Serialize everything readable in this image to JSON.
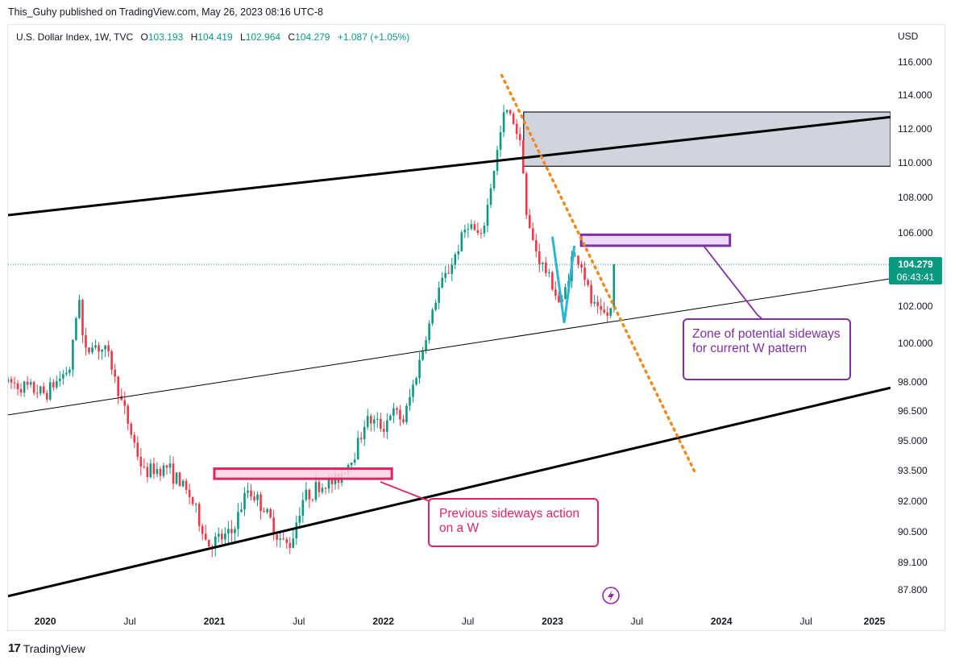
{
  "header": {
    "published_line": "This_Guhy published on TradingView.com, May 26, 2023 08:16 UTC-8"
  },
  "legend": {
    "symbol": "U.S. Dollar Index, 1W, TVC",
    "open_label": "O",
    "open": "103.193",
    "high_label": "H",
    "high": "104.419",
    "low_label": "L",
    "low": "102.964",
    "close_label": "C",
    "close": "104.279",
    "change": "+1.087 (+1.05%)"
  },
  "currency": "USD",
  "price_tag": {
    "price": "104.279",
    "countdown": "06:43:41"
  },
  "callouts": {
    "zone": "Zone of potential sideways for current W pattern",
    "previous": "Previous sideways action on a W"
  },
  "footer": {
    "brand": "TradingView",
    "logo": "tv-logo-icon"
  },
  "colors": {
    "up": "#089981",
    "down": "#f23645",
    "accent_purple": "#7e2ea6",
    "accent_pink": "#e02463",
    "trend_orange": "#f08a1e",
    "w_cyan": "#29b6d6",
    "resistance_fill": "#d1d4dc"
  },
  "chart_data": {
    "type": "candlestick",
    "symbol": "U.S. Dollar Index",
    "interval": "1W",
    "source": "TVC",
    "y_axis_ticks": [
      "116.000",
      "114.000",
      "112.000",
      "110.000",
      "108.000",
      "106.000",
      "102.000",
      "100.000",
      "98.000",
      "96.500",
      "95.000",
      "93.500",
      "92.000",
      "90.500",
      "89.100",
      "87.800"
    ],
    "x_axis_ticks": [
      "2020",
      "Jul",
      "2021",
      "Jul",
      "2022",
      "Jul",
      "2023",
      "Jul",
      "2024",
      "Jul",
      "2025"
    ],
    "x_range": [
      2019.78,
      2025.0
    ],
    "last_price": 104.279,
    "series_anchors": [
      {
        "t": 2019.78,
        "v": 98.0
      },
      {
        "t": 2020.0,
        "v": 97.4
      },
      {
        "t": 2020.15,
        "v": 98.8
      },
      {
        "t": 2020.2,
        "v": 102.8
      },
      {
        "t": 2020.23,
        "v": 99.3
      },
      {
        "t": 2020.28,
        "v": 100.0
      },
      {
        "t": 2020.37,
        "v": 99.5
      },
      {
        "t": 2020.45,
        "v": 97.0
      },
      {
        "t": 2020.58,
        "v": 93.4
      },
      {
        "t": 2020.72,
        "v": 93.7
      },
      {
        "t": 2020.86,
        "v": 92.2
      },
      {
        "t": 2020.96,
        "v": 89.9
      },
      {
        "t": 2021.1,
        "v": 90.4
      },
      {
        "t": 2021.2,
        "v": 92.6
      },
      {
        "t": 2021.28,
        "v": 91.8
      },
      {
        "t": 2021.4,
        "v": 90.0
      },
      {
        "t": 2021.45,
        "v": 89.9
      },
      {
        "t": 2021.52,
        "v": 92.1
      },
      {
        "t": 2021.6,
        "v": 92.6
      },
      {
        "t": 2021.72,
        "v": 93.0
      },
      {
        "t": 2021.82,
        "v": 94.2
      },
      {
        "t": 2021.9,
        "v": 96.1
      },
      {
        "t": 2022.0,
        "v": 95.7
      },
      {
        "t": 2022.05,
        "v": 96.5
      },
      {
        "t": 2022.12,
        "v": 96.0
      },
      {
        "t": 2022.2,
        "v": 98.6
      },
      {
        "t": 2022.33,
        "v": 103.0
      },
      {
        "t": 2022.4,
        "v": 104.2
      },
      {
        "t": 2022.5,
        "v": 106.6
      },
      {
        "t": 2022.58,
        "v": 105.6
      },
      {
        "t": 2022.63,
        "v": 108.3
      },
      {
        "t": 2022.72,
        "v": 113.2
      },
      {
        "t": 2022.77,
        "v": 112.5
      },
      {
        "t": 2022.82,
        "v": 110.8
      },
      {
        "t": 2022.85,
        "v": 106.5
      },
      {
        "t": 2022.92,
        "v": 104.6
      },
      {
        "t": 2023.0,
        "v": 103.2
      },
      {
        "t": 2023.05,
        "v": 101.9
      },
      {
        "t": 2023.12,
        "v": 104.8
      },
      {
        "t": 2023.17,
        "v": 104.3
      },
      {
        "t": 2023.23,
        "v": 102.2
      },
      {
        "t": 2023.28,
        "v": 101.6
      },
      {
        "t": 2023.34,
        "v": 101.5
      },
      {
        "t": 2023.38,
        "v": 104.279
      }
    ],
    "annotations": [
      {
        "kind": "rectangle",
        "label": "resistance zone",
        "t0": 2022.83,
        "t1": 2025.0,
        "v0": 109.8,
        "v1": 113.0
      },
      {
        "kind": "rectangle",
        "label": "current sideways zone",
        "t0": 2023.17,
        "t1": 2024.05,
        "v0": 105.3,
        "v1": 105.9
      },
      {
        "kind": "rectangle",
        "label": "previous sideways zone",
        "t0": 2021.0,
        "t1": 2022.05,
        "v0": 93.1,
        "v1": 93.6
      },
      {
        "kind": "trendline",
        "label": "upper channel",
        "p0": [
          2019.78,
          107.0
        ],
        "p1": [
          2025.0,
          112.7
        ]
      },
      {
        "kind": "trendline",
        "label": "mid channel",
        "p0": [
          2019.78,
          96.3
        ],
        "p1": [
          2025.0,
          103.5
        ]
      },
      {
        "kind": "trendline",
        "label": "lower channel",
        "p0": [
          2019.78,
          87.5
        ],
        "p1": [
          2025.0,
          97.7
        ]
      },
      {
        "kind": "dotted_trendline",
        "label": "downtrend",
        "p0": [
          2022.7,
          115.2
        ],
        "p1": [
          2023.85,
          93.3
        ]
      },
      {
        "kind": "w_pattern",
        "points": [
          [
            2023.0,
            105.8
          ],
          [
            2023.07,
            101.1
          ],
          [
            2023.13,
            105.3
          ]
        ]
      }
    ]
  }
}
